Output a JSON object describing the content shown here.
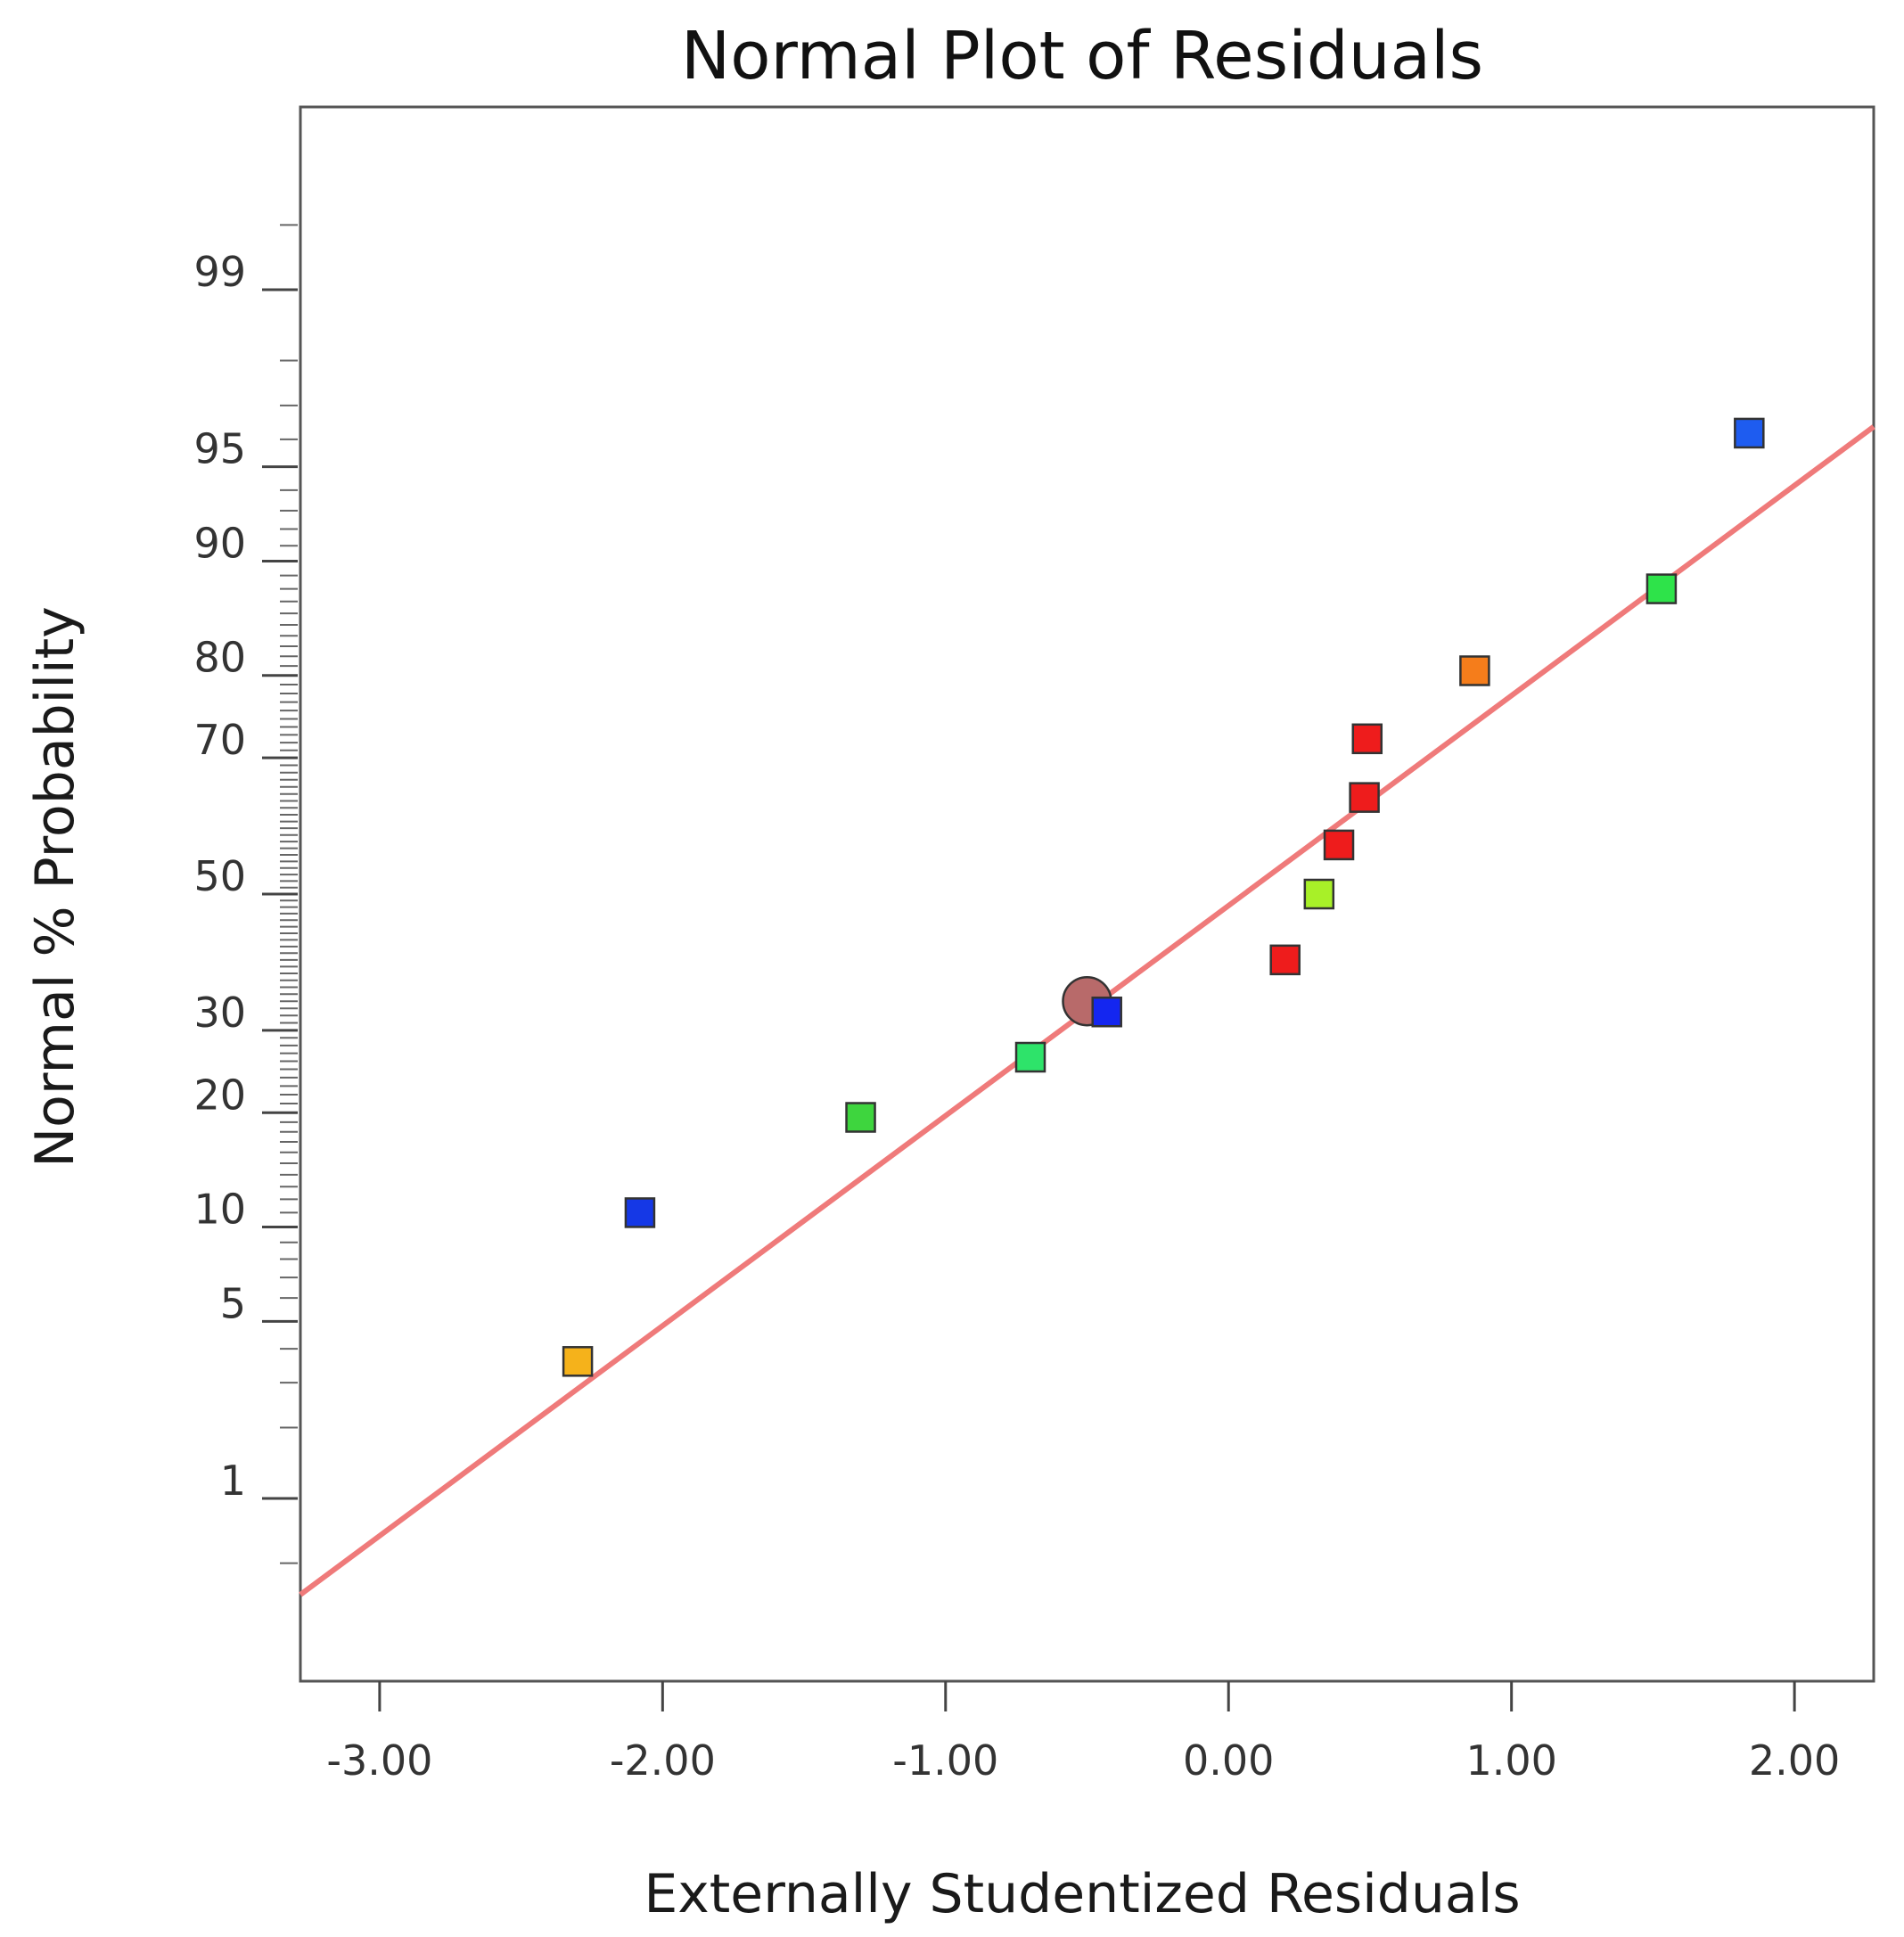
{
  "chart_data": {
    "type": "scatter",
    "title": "Normal Plot of Residuals",
    "xlabel": "Externally Studentized Residuals",
    "ylabel": "Normal % Probability",
    "xlim": [
      -3.28,
      2.28
    ],
    "ylim_z": [
      -3.03,
      3.03
    ],
    "x_ticks": [
      -3,
      -2,
      -1,
      0,
      1,
      2
    ],
    "x_tick_labels": [
      "-3.00",
      "-2.00",
      "-1.00",
      "0.00",
      "1.00",
      "2.00"
    ],
    "y_ticks": [
      1,
      5,
      10,
      20,
      30,
      50,
      70,
      80,
      90,
      95,
      99
    ],
    "y_tick_labels": [
      "1",
      "5",
      "10",
      "20",
      "30",
      "50",
      "70",
      "80",
      "90",
      "95",
      "99"
    ],
    "y_minor_ticks": [
      0.5,
      2,
      3,
      4,
      6,
      7,
      8,
      9,
      11,
      12,
      13,
      14,
      15,
      16,
      17,
      18,
      19,
      21,
      22,
      23,
      24,
      25,
      26,
      27,
      28,
      29,
      31,
      32,
      33,
      34,
      35,
      36,
      37,
      38,
      39,
      40,
      41,
      42,
      43,
      44,
      45,
      46,
      47,
      48,
      49,
      51,
      52,
      53,
      54,
      55,
      56,
      57,
      58,
      59,
      60,
      61,
      62,
      63,
      64,
      65,
      66,
      67,
      68,
      69,
      71,
      72,
      73,
      74,
      75,
      76,
      77,
      78,
      79,
      81,
      82,
      83,
      84,
      85,
      86,
      87,
      88,
      89,
      91,
      92,
      93,
      94,
      96,
      97,
      98,
      99.5
    ],
    "fit_line": {
      "x": [
        -3.28,
        2.28
      ],
      "probability": [
        0.35,
        96.4
      ],
      "color": "#ef7a7a"
    },
    "points": [
      {
        "x": -2.3,
        "probability": 3.6,
        "shape": "square",
        "color": "#f5b21b"
      },
      {
        "x": -2.08,
        "probability": 11.0,
        "shape": "square",
        "color": "#1538e6"
      },
      {
        "x": -1.3,
        "probability": 19.5,
        "shape": "square",
        "color": "#3ed53e"
      },
      {
        "x": -0.7,
        "probability": 26.5,
        "shape": "square",
        "color": "#2ee36a"
      },
      {
        "x": -0.5,
        "probability": 34.0,
        "shape": "circle",
        "color": "#b86a6a"
      },
      {
        "x": -0.43,
        "probability": 32.5,
        "shape": "square",
        "color": "#1426f0"
      },
      {
        "x": 0.2,
        "probability": 40.0,
        "shape": "square",
        "color": "#ee1c1c"
      },
      {
        "x": 0.32,
        "probability": 50.0,
        "shape": "square",
        "color": "#a8f028"
      },
      {
        "x": 0.39,
        "probability": 57.5,
        "shape": "square",
        "color": "#ee1c1c"
      },
      {
        "x": 0.48,
        "probability": 64.5,
        "shape": "square",
        "color": "#ee1c1c"
      },
      {
        "x": 0.49,
        "probability": 72.5,
        "shape": "square",
        "color": "#ee1c1c"
      },
      {
        "x": 0.87,
        "probability": 80.5,
        "shape": "square",
        "color": "#f57d1b"
      },
      {
        "x": 1.53,
        "probability": 88.0,
        "shape": "square",
        "color": "#2ee34a"
      },
      {
        "x": 1.84,
        "probability": 96.2,
        "shape": "square",
        "color": "#1e5cf0"
      }
    ]
  }
}
